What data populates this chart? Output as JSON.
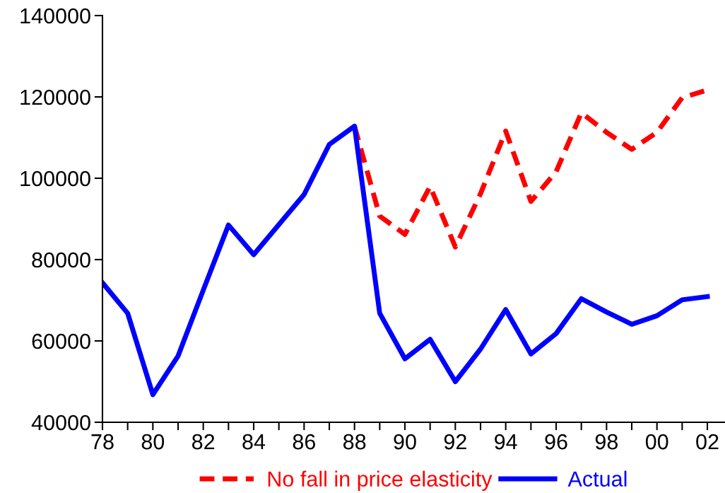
{
  "chart_data": {
    "type": "line",
    "x": [
      1978,
      1979,
      1980,
      1981,
      1982,
      1983,
      1984,
      1985,
      1986,
      1987,
      1988,
      1989,
      1990,
      1991,
      1992,
      1993,
      1994,
      1995,
      1996,
      1997,
      1998,
      1999,
      2000,
      2001,
      2002
    ],
    "series": [
      {
        "name": "No fall in price elasticity",
        "color": "#ff0000",
        "line_style": "dashed",
        "values": [
          null,
          null,
          null,
          null,
          null,
          null,
          null,
          null,
          null,
          null,
          112800,
          90700,
          86200,
          98000,
          83100,
          96200,
          111600,
          94300,
          101600,
          116100,
          111300,
          107100,
          111300,
          119800,
          121700
        ]
      },
      {
        "name": "Actual",
        "color": "#0000ff",
        "line_style": "solid",
        "values": [
          74300,
          66800,
          46800,
          56300,
          72500,
          88500,
          81200,
          88600,
          96000,
          108300,
          112800,
          66800,
          55600,
          60400,
          50000,
          58000,
          67700,
          56800,
          61800,
          70400,
          67100,
          64100,
          66200,
          70100,
          70900
        ]
      }
    ],
    "xlim": [
      1978,
      2002.7
    ],
    "xticks": [
      {
        "value": 1978,
        "label": "78"
      },
      {
        "value": 1979,
        "label": null
      },
      {
        "value": 1980,
        "label": "80"
      },
      {
        "value": 1981,
        "label": null
      },
      {
        "value": 1982,
        "label": "82"
      },
      {
        "value": 1983,
        "label": null
      },
      {
        "value": 1984,
        "label": "84"
      },
      {
        "value": 1985,
        "label": null
      },
      {
        "value": 1986,
        "label": "86"
      },
      {
        "value": 1987,
        "label": null
      },
      {
        "value": 1988,
        "label": "88"
      },
      {
        "value": 1989,
        "label": null
      },
      {
        "value": 1990,
        "label": "90"
      },
      {
        "value": 1991,
        "label": null
      },
      {
        "value": 1992,
        "label": "92"
      },
      {
        "value": 1993,
        "label": null
      },
      {
        "value": 1994,
        "label": "94"
      },
      {
        "value": 1995,
        "label": null
      },
      {
        "value": 1996,
        "label": "96"
      },
      {
        "value": 1997,
        "label": null
      },
      {
        "value": 1998,
        "label": "98"
      },
      {
        "value": 1999,
        "label": null
      },
      {
        "value": 2000,
        "label": "00"
      },
      {
        "value": 2001,
        "label": null
      },
      {
        "value": 2002,
        "label": "02"
      }
    ],
    "ylim": [
      40000,
      140000
    ],
    "yticks": [
      40000,
      60000,
      80000,
      100000,
      120000,
      140000
    ],
    "grid": false,
    "legend": "bottom"
  }
}
